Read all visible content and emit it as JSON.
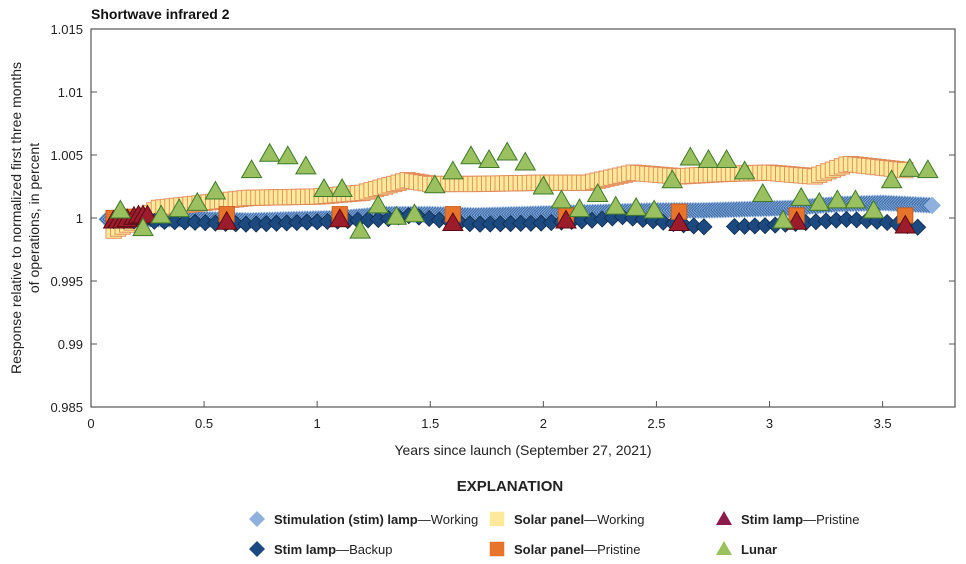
{
  "chart_data": {
    "type": "scatter",
    "title": "Shortwave infrared 2",
    "xlabel": "Years since launch (September 27, 2021)",
    "ylabel": [
      "Response relative to normalized first three months",
      "of operations, in percent"
    ],
    "xlim": [
      0,
      3.82
    ],
    "ylim": [
      0.985,
      1.015
    ],
    "xticks": [
      0,
      0.5,
      1,
      1.5,
      2,
      2.5,
      3,
      3.5
    ],
    "xtick_labels": [
      "0",
      "0.5",
      "1",
      "1.5",
      "2",
      "2.5",
      "3",
      "3.5"
    ],
    "yticks": [
      0.985,
      0.99,
      0.995,
      1,
      1.005,
      1.01,
      1.015
    ],
    "ytick_labels": [
      "0.985",
      "0.99",
      "0.995",
      "1",
      "1.005",
      "1.01",
      "1.015"
    ],
    "legend_title": "EXPLANATION",
    "series": [
      {
        "name": "Stimulation (stim) lamp—Working",
        "bold": "Stimulation (stim) lamp",
        "rest": "—Working",
        "marker": "diamond",
        "color": "#3a6aa8",
        "edge": "#8fb0dc",
        "interp_step": 0.012,
        "x": [
          0.07,
          0.3,
          0.5,
          0.7,
          0.9,
          1.1,
          1.3,
          1.5,
          1.7,
          1.9,
          2.1,
          2.3,
          2.5,
          2.7,
          2.9,
          3.1,
          3.3,
          3.5,
          3.72
        ],
        "y": [
          0.9999,
          0.9999,
          0.9999,
          0.9998,
          0.9999,
          1.0,
          1.0003,
          1.0003,
          1.0002,
          1.0003,
          1.0004,
          1.0005,
          1.0006,
          1.0006,
          1.0007,
          1.0008,
          1.0011,
          1.0012,
          1.001
        ]
      },
      {
        "name": "Solar panel—Working",
        "bold": "Solar panel",
        "rest": "—Working",
        "marker": "square",
        "color": "#fde99a",
        "edge": "#e08a5a",
        "interp_step": 0.02,
        "x": [
          0.1,
          0.2,
          0.3,
          0.5,
          0.7,
          1.0,
          1.2,
          1.4,
          1.5,
          1.7,
          2.0,
          2.2,
          2.4,
          2.6,
          2.8,
          3.0,
          3.2,
          3.35,
          3.6
        ],
        "y": [
          0.999,
          0.9998,
          1.0008,
          1.0012,
          1.0016,
          1.0017,
          1.002,
          1.003,
          1.0027,
          1.0027,
          1.0028,
          1.0028,
          1.0036,
          1.0033,
          1.0035,
          1.0036,
          1.0033,
          1.0043,
          1.0038
        ]
      },
      {
        "name": "Stim lamp—Backup",
        "bold": "Stim lamp",
        "rest": "—Backup",
        "marker": "diamond",
        "color": "#1c4a80",
        "edge": "#0e2a4a",
        "interp_step": 0.045,
        "x": [
          0.1,
          0.4,
          0.7,
          1.0,
          1.3,
          1.4,
          1.6,
          1.7,
          2.0,
          2.2,
          2.35,
          2.6,
          2.7,
          2.8,
          3.0,
          3.2,
          3.35,
          3.5,
          3.68
        ],
        "y": [
          0.9998,
          0.9997,
          0.9995,
          0.9997,
          0.9999,
          1.0002,
          0.9997,
          0.9995,
          0.9996,
          0.9998,
          1.0001,
          0.9995,
          0.9993,
          0.9993,
          0.9994,
          0.9997,
          0.9999,
          0.9997,
          0.9992
        ]
      },
      {
        "name": "Solar panel—Pristine",
        "bold": "Solar panel",
        "rest": "—Pristine",
        "marker": "square",
        "color": "#e8732a",
        "edge": "#c85a1a",
        "x": [
          0.1,
          0.15,
          0.6,
          1.1,
          1.6,
          2.1,
          2.6,
          3.12,
          3.6
        ],
        "y": [
          1.0,
          1.0001,
          1.0003,
          1.0003,
          1.0003,
          1.0002,
          1.0005,
          1.0002,
          1.0002
        ]
      },
      {
        "name": "Stim lamp—Pristine",
        "bold": "Stim lamp",
        "rest": "—Pristine",
        "marker": "triangle",
        "color": "#9c1c2c",
        "edge": "#5a0a14",
        "x": [
          0.1,
          0.12,
          0.14,
          0.16,
          0.19,
          0.21,
          0.23,
          0.25,
          0.6,
          1.1,
          1.6,
          2.1,
          2.6,
          3.12,
          3.6
        ],
        "y": [
          0.9998,
          0.9998,
          0.9998,
          0.9999,
          1.0001,
          1.0002,
          1.0002,
          1.0002,
          0.9997,
          0.9999,
          0.9996,
          0.9998,
          0.9996,
          0.9997,
          0.9994
        ]
      },
      {
        "name": "Lunar",
        "bold": "Lunar",
        "rest": "",
        "marker": "triangle",
        "color": "#9bc060",
        "edge": "#3f7a2a",
        "x": [
          0.13,
          0.23,
          0.31,
          0.39,
          0.47,
          0.55,
          0.71,
          0.79,
          0.87,
          0.95,
          1.03,
          1.11,
          1.19,
          1.27,
          1.35,
          1.43,
          1.52,
          1.6,
          1.68,
          1.76,
          1.84,
          1.92,
          2.0,
          2.08,
          2.16,
          2.24,
          2.32,
          2.41,
          2.49,
          2.57,
          2.65,
          2.73,
          2.81,
          2.89,
          2.97,
          3.06,
          3.14,
          3.22,
          3.3,
          3.38,
          3.46,
          3.54,
          3.62,
          3.7
        ],
        "y": [
          1.0006,
          0.9992,
          1.0002,
          1.0007,
          1.0012,
          1.0021,
          1.0038,
          1.0051,
          1.0049,
          1.0041,
          1.0023,
          1.0023,
          0.999,
          1.001,
          1.0001,
          1.0003,
          1.0026,
          1.0037,
          1.0049,
          1.0046,
          1.0052,
          1.0044,
          1.0025,
          1.0014,
          1.0007,
          1.0019,
          1.0009,
          1.0008,
          1.0006,
          1.003,
          1.0048,
          1.0046,
          1.0046,
          1.0037,
          1.0019,
          0.9998,
          1.0016,
          1.0012,
          1.0014,
          1.0014,
          1.0006,
          1.003,
          1.0039,
          1.0038
        ]
      }
    ]
  }
}
